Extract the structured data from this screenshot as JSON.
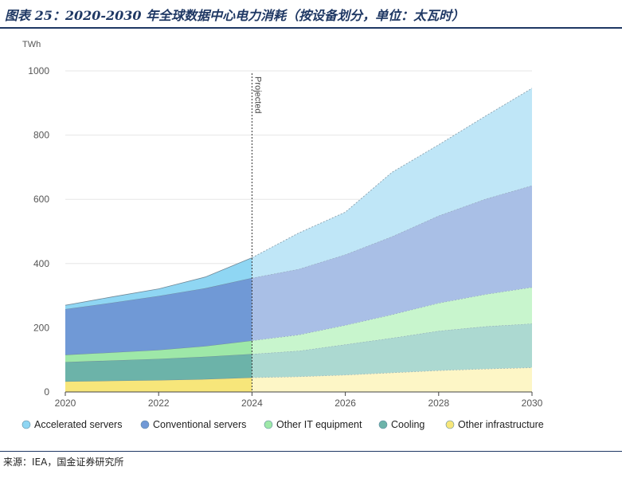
{
  "figure": {
    "title": "图表 25：2020-2030 年全球数据中心电力消耗（按设备划分，单位：太瓦时）",
    "source": "来源：IEA，国金证券研究所"
  },
  "chart_data": {
    "type": "area",
    "stacked": true,
    "unit_label": "TWh",
    "x": [
      2020,
      2021,
      2022,
      2023,
      2024,
      2025,
      2026,
      2027,
      2028,
      2029,
      2030
    ],
    "x_ticks": [
      "2020",
      "2022",
      "2024",
      "2026",
      "2028",
      "2030"
    ],
    "y_ticks": [
      "0",
      "200",
      "400",
      "600",
      "800",
      "1000"
    ],
    "ylim": [
      0,
      1000
    ],
    "projection_start": 2024,
    "projection_label": "Projected",
    "grid": true,
    "legend_position": "bottom",
    "series": [
      {
        "name": "Other infrastructure",
        "color": "#f7e67a",
        "projected_color": "#fdf6c6",
        "values": [
          33,
          35,
          37,
          40,
          45,
          48,
          53,
          60,
          67,
          72,
          76
        ]
      },
      {
        "name": "Cooling",
        "color": "#6cb3a9",
        "projected_color": "#acd9d1",
        "values": [
          60,
          63,
          66,
          70,
          73,
          80,
          95,
          108,
          123,
          132,
          137
        ]
      },
      {
        "name": "Other IT equipment",
        "color": "#9ee8a8",
        "projected_color": "#c8f5cd",
        "values": [
          23,
          25,
          28,
          33,
          42,
          50,
          60,
          73,
          87,
          100,
          113
        ]
      },
      {
        "name": "Conventional servers",
        "color": "#7099d6",
        "projected_color": "#a9bfe6",
        "values": [
          142,
          155,
          168,
          180,
          195,
          205,
          220,
          243,
          272,
          297,
          317
        ]
      },
      {
        "name": "Accelerated servers",
        "color": "#8fd6f3",
        "projected_color": "#bfe6f7",
        "values": [
          12,
          18,
          22,
          35,
          63,
          112,
          132,
          200,
          221,
          258,
          303
        ]
      }
    ]
  }
}
